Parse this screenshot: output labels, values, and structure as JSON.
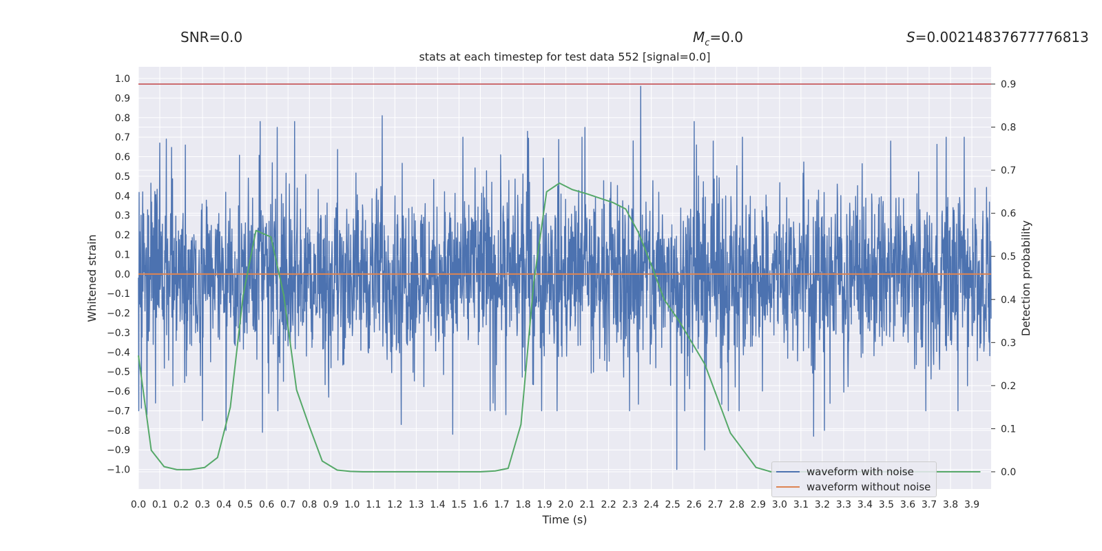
{
  "header": {
    "snr_label": "SNR=0.0",
    "mc_symbol": "M",
    "mc_sub": "c",
    "mc_value": "=0.0",
    "s_symbol": "S",
    "s_value": "=0.00214837677776813"
  },
  "chart_data": {
    "type": "line",
    "title": "stats at each timestep for test data 552 [signal=0.0]",
    "xlabel": "Time (s)",
    "ylabel": "Whitened strain",
    "y2label": "Detection probability",
    "xlim": [
      0.0,
      3.99
    ],
    "ylim": [
      -1.1,
      1.06
    ],
    "y2lim": [
      -0.04,
      0.94
    ],
    "xticks": [
      "0.0",
      "0.1",
      "0.2",
      "0.3",
      "0.4",
      "0.5",
      "0.6",
      "0.7",
      "0.8",
      "0.9",
      "1.0",
      "1.1",
      "1.2",
      "1.3",
      "1.4",
      "1.5",
      "1.6",
      "1.7",
      "1.8",
      "1.9",
      "2.0",
      "2.1",
      "2.2",
      "2.3",
      "2.4",
      "2.5",
      "2.6",
      "2.7",
      "2.8",
      "2.9",
      "3.0",
      "3.1",
      "3.2",
      "3.3",
      "3.4",
      "3.5",
      "3.6",
      "3.7",
      "3.8",
      "3.9"
    ],
    "yticks": [
      "1.0",
      "0.9",
      "0.8",
      "0.7",
      "0.6",
      "0.5",
      "0.4",
      "0.3",
      "0.2",
      "0.1",
      "0.0",
      "−0.1",
      "−0.2",
      "−0.3",
      "−0.4",
      "−0.5",
      "−0.6",
      "−0.7",
      "−0.8",
      "−0.9",
      "−1.0"
    ],
    "y2ticks": [
      "0.9",
      "0.8",
      "0.7",
      "0.6",
      "0.5",
      "0.4",
      "0.3",
      "0.2",
      "0.1",
      "0.0"
    ],
    "grid": true,
    "legend_position": "lower-right",
    "colors": {
      "noisy": "#4c72b0",
      "clean": "#dd8452",
      "prob": "#55a868",
      "threshold": "#c44e52",
      "plot_bg": "#eaeaf2"
    },
    "series": [
      {
        "name": "waveform with noise",
        "description": "dense whitened noise, spanning roughly -1.0 to 1.0 across 0-4 s",
        "peak_values": [
          {
            "x": 0.02,
            "y": 0.42
          },
          {
            "x": 0.04,
            "y": -0.72
          },
          {
            "x": 0.08,
            "y": -0.66
          },
          {
            "x": 0.1,
            "y": 0.67
          },
          {
            "x": 0.13,
            "y": 0.69
          },
          {
            "x": 0.22,
            "y": 0.66
          },
          {
            "x": 0.3,
            "y": -0.75
          },
          {
            "x": 0.41,
            "y": -0.8
          },
          {
            "x": 0.57,
            "y": 0.78
          },
          {
            "x": 0.58,
            "y": -0.81
          },
          {
            "x": 0.65,
            "y": 0.75
          },
          {
            "x": 0.73,
            "y": 0.78
          },
          {
            "x": 0.89,
            "y": -0.63
          },
          {
            "x": 1.14,
            "y": 0.81
          },
          {
            "x": 1.23,
            "y": -0.77
          },
          {
            "x": 1.47,
            "y": -0.82
          },
          {
            "x": 1.72,
            "y": -0.72
          },
          {
            "x": 1.82,
            "y": 0.73
          },
          {
            "x": 2.09,
            "y": 0.75
          },
          {
            "x": 2.35,
            "y": 0.96
          },
          {
            "x": 2.52,
            "y": -1.0
          },
          {
            "x": 2.6,
            "y": 0.78
          },
          {
            "x": 2.65,
            "y": -0.9
          },
          {
            "x": 2.69,
            "y": 0.68
          },
          {
            "x": 3.16,
            "y": -0.83
          },
          {
            "x": 3.21,
            "y": -0.8
          },
          {
            "x": 3.52,
            "y": 0.68
          },
          {
            "x": 3.78,
            "y": 0.7
          }
        ]
      },
      {
        "name": "waveform without noise",
        "x": [
          0.0,
          3.99
        ],
        "y": [
          0.0,
          0.0
        ]
      },
      {
        "name": "detection probability",
        "axis": "right",
        "x": [
          0.0,
          0.06,
          0.12,
          0.18,
          0.24,
          0.31,
          0.37,
          0.43,
          0.49,
          0.55,
          0.62,
          0.68,
          0.74,
          0.8,
          0.86,
          0.93,
          0.99,
          1.05,
          1.11,
          1.17,
          1.23,
          1.29,
          1.36,
          1.42,
          1.48,
          1.54,
          1.6,
          1.67,
          1.73,
          1.79,
          1.85,
          1.91,
          1.97,
          2.03,
          2.1,
          2.16,
          2.22,
          2.28,
          2.34,
          2.4,
          2.46,
          2.53,
          2.59,
          2.65,
          2.71,
          2.77,
          2.83,
          2.89,
          2.96,
          3.02,
          3.08,
          3.14,
          3.2,
          3.26,
          3.32,
          3.39,
          3.45,
          3.51,
          3.57,
          3.63,
          3.69,
          3.75,
          3.82,
          3.88,
          3.94
        ],
        "y": [
          0.27,
          0.05,
          0.012,
          0.005,
          0.005,
          0.01,
          0.033,
          0.15,
          0.41,
          0.56,
          0.545,
          0.41,
          0.19,
          0.105,
          0.025,
          0.004,
          0.001,
          0.0,
          0.0,
          0.0,
          0.0,
          0.0,
          0.0,
          0.0,
          0.0,
          0.0,
          0.0,
          0.002,
          0.008,
          0.11,
          0.44,
          0.65,
          0.67,
          0.655,
          0.645,
          0.635,
          0.625,
          0.61,
          0.555,
          0.48,
          0.4,
          0.35,
          0.3,
          0.25,
          0.17,
          0.09,
          0.05,
          0.01,
          0.0,
          0.0,
          0.0,
          0.0,
          0.0,
          0.0,
          0.0,
          0.0,
          0.0,
          0.0,
          0.0,
          0.0,
          0.0,
          0.0,
          0.0,
          0.0,
          0.0
        ]
      },
      {
        "name": "threshold",
        "axis": "right",
        "y": 0.9
      }
    ]
  }
}
